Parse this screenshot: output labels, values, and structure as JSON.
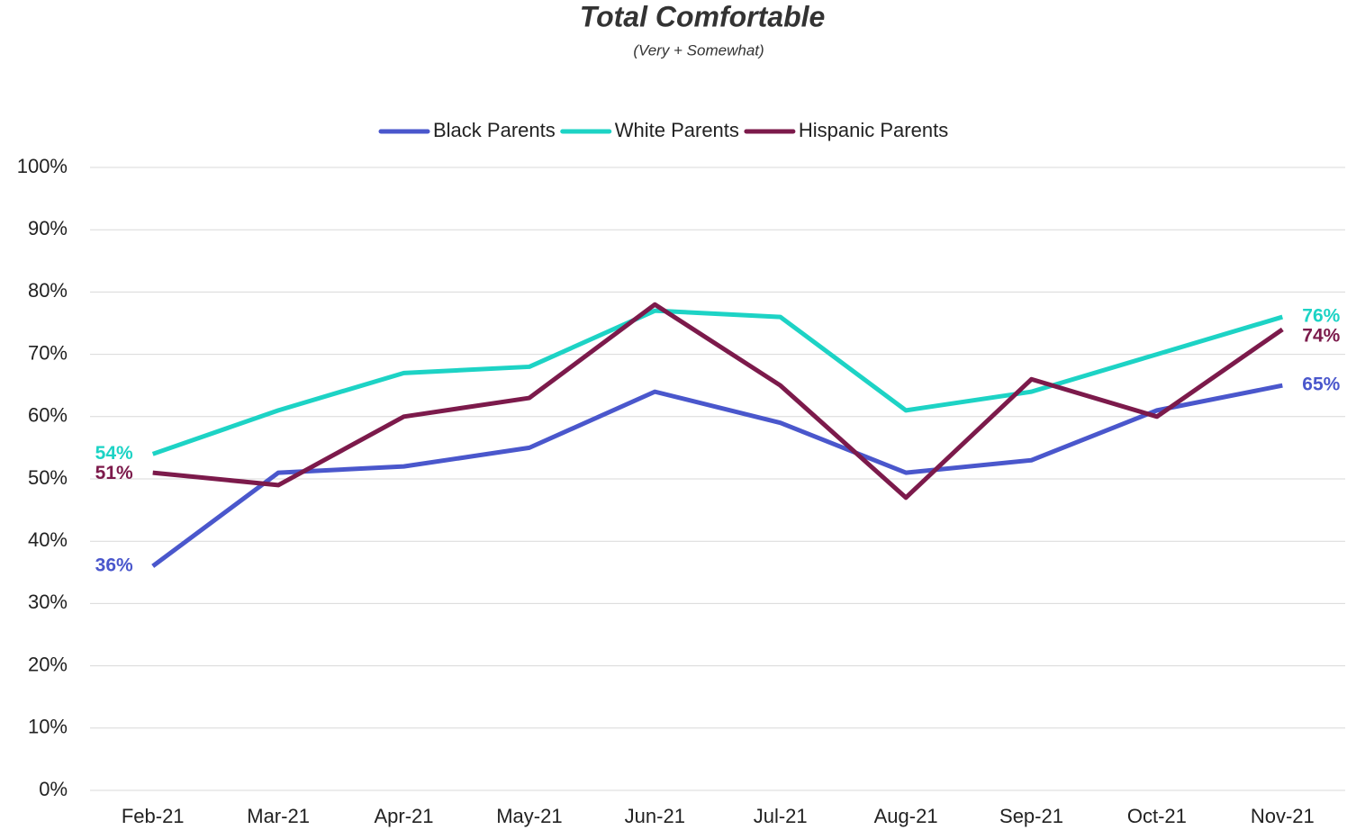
{
  "chart_data": {
    "type": "line",
    "title": "Total Comfortable",
    "subtitle": "(Very + Somewhat)",
    "categories": [
      "Feb-21",
      "Mar-21",
      "Apr-21",
      "May-21",
      "Jun-21",
      "Jul-21",
      "Aug-21",
      "Sep-21",
      "Oct-21",
      "Nov-21"
    ],
    "series": [
      {
        "name": "Black Parents",
        "color": "#4a57cc",
        "values": [
          36,
          51,
          52,
          55,
          64,
          59,
          51,
          53,
          61,
          65
        ],
        "value_labels": [
          "36%",
          null,
          null,
          null,
          null,
          null,
          null,
          null,
          null,
          "65%"
        ]
      },
      {
        "name": "White Parents",
        "color": "#1dd3c5",
        "values": [
          54,
          61,
          67,
          68,
          77,
          76,
          61,
          64,
          70,
          76
        ],
        "value_labels": [
          "54%",
          null,
          null,
          null,
          null,
          null,
          null,
          null,
          null,
          "76%"
        ]
      },
      {
        "name": "Hispanic Parents",
        "color": "#7c1a4b",
        "values": [
          51,
          49,
          60,
          63,
          78,
          65,
          47,
          66,
          60,
          74
        ],
        "value_labels": [
          "51%",
          null,
          null,
          null,
          null,
          null,
          null,
          null,
          null,
          "74%"
        ]
      }
    ],
    "ylim": [
      0,
      100
    ],
    "yticks": [
      {
        "value": 0,
        "label": "0%"
      },
      {
        "value": 10,
        "label": "10%"
      },
      {
        "value": 20,
        "label": "20%"
      },
      {
        "value": 30,
        "label": "30%"
      },
      {
        "value": 40,
        "label": "40%"
      },
      {
        "value": 50,
        "label": "50%"
      },
      {
        "value": 60,
        "label": "60%"
      },
      {
        "value": 70,
        "label": "70%"
      },
      {
        "value": 80,
        "label": "80%"
      },
      {
        "value": 90,
        "label": "90%"
      },
      {
        "value": 100,
        "label": "100%"
      }
    ],
    "grid": true,
    "legend": "top"
  }
}
